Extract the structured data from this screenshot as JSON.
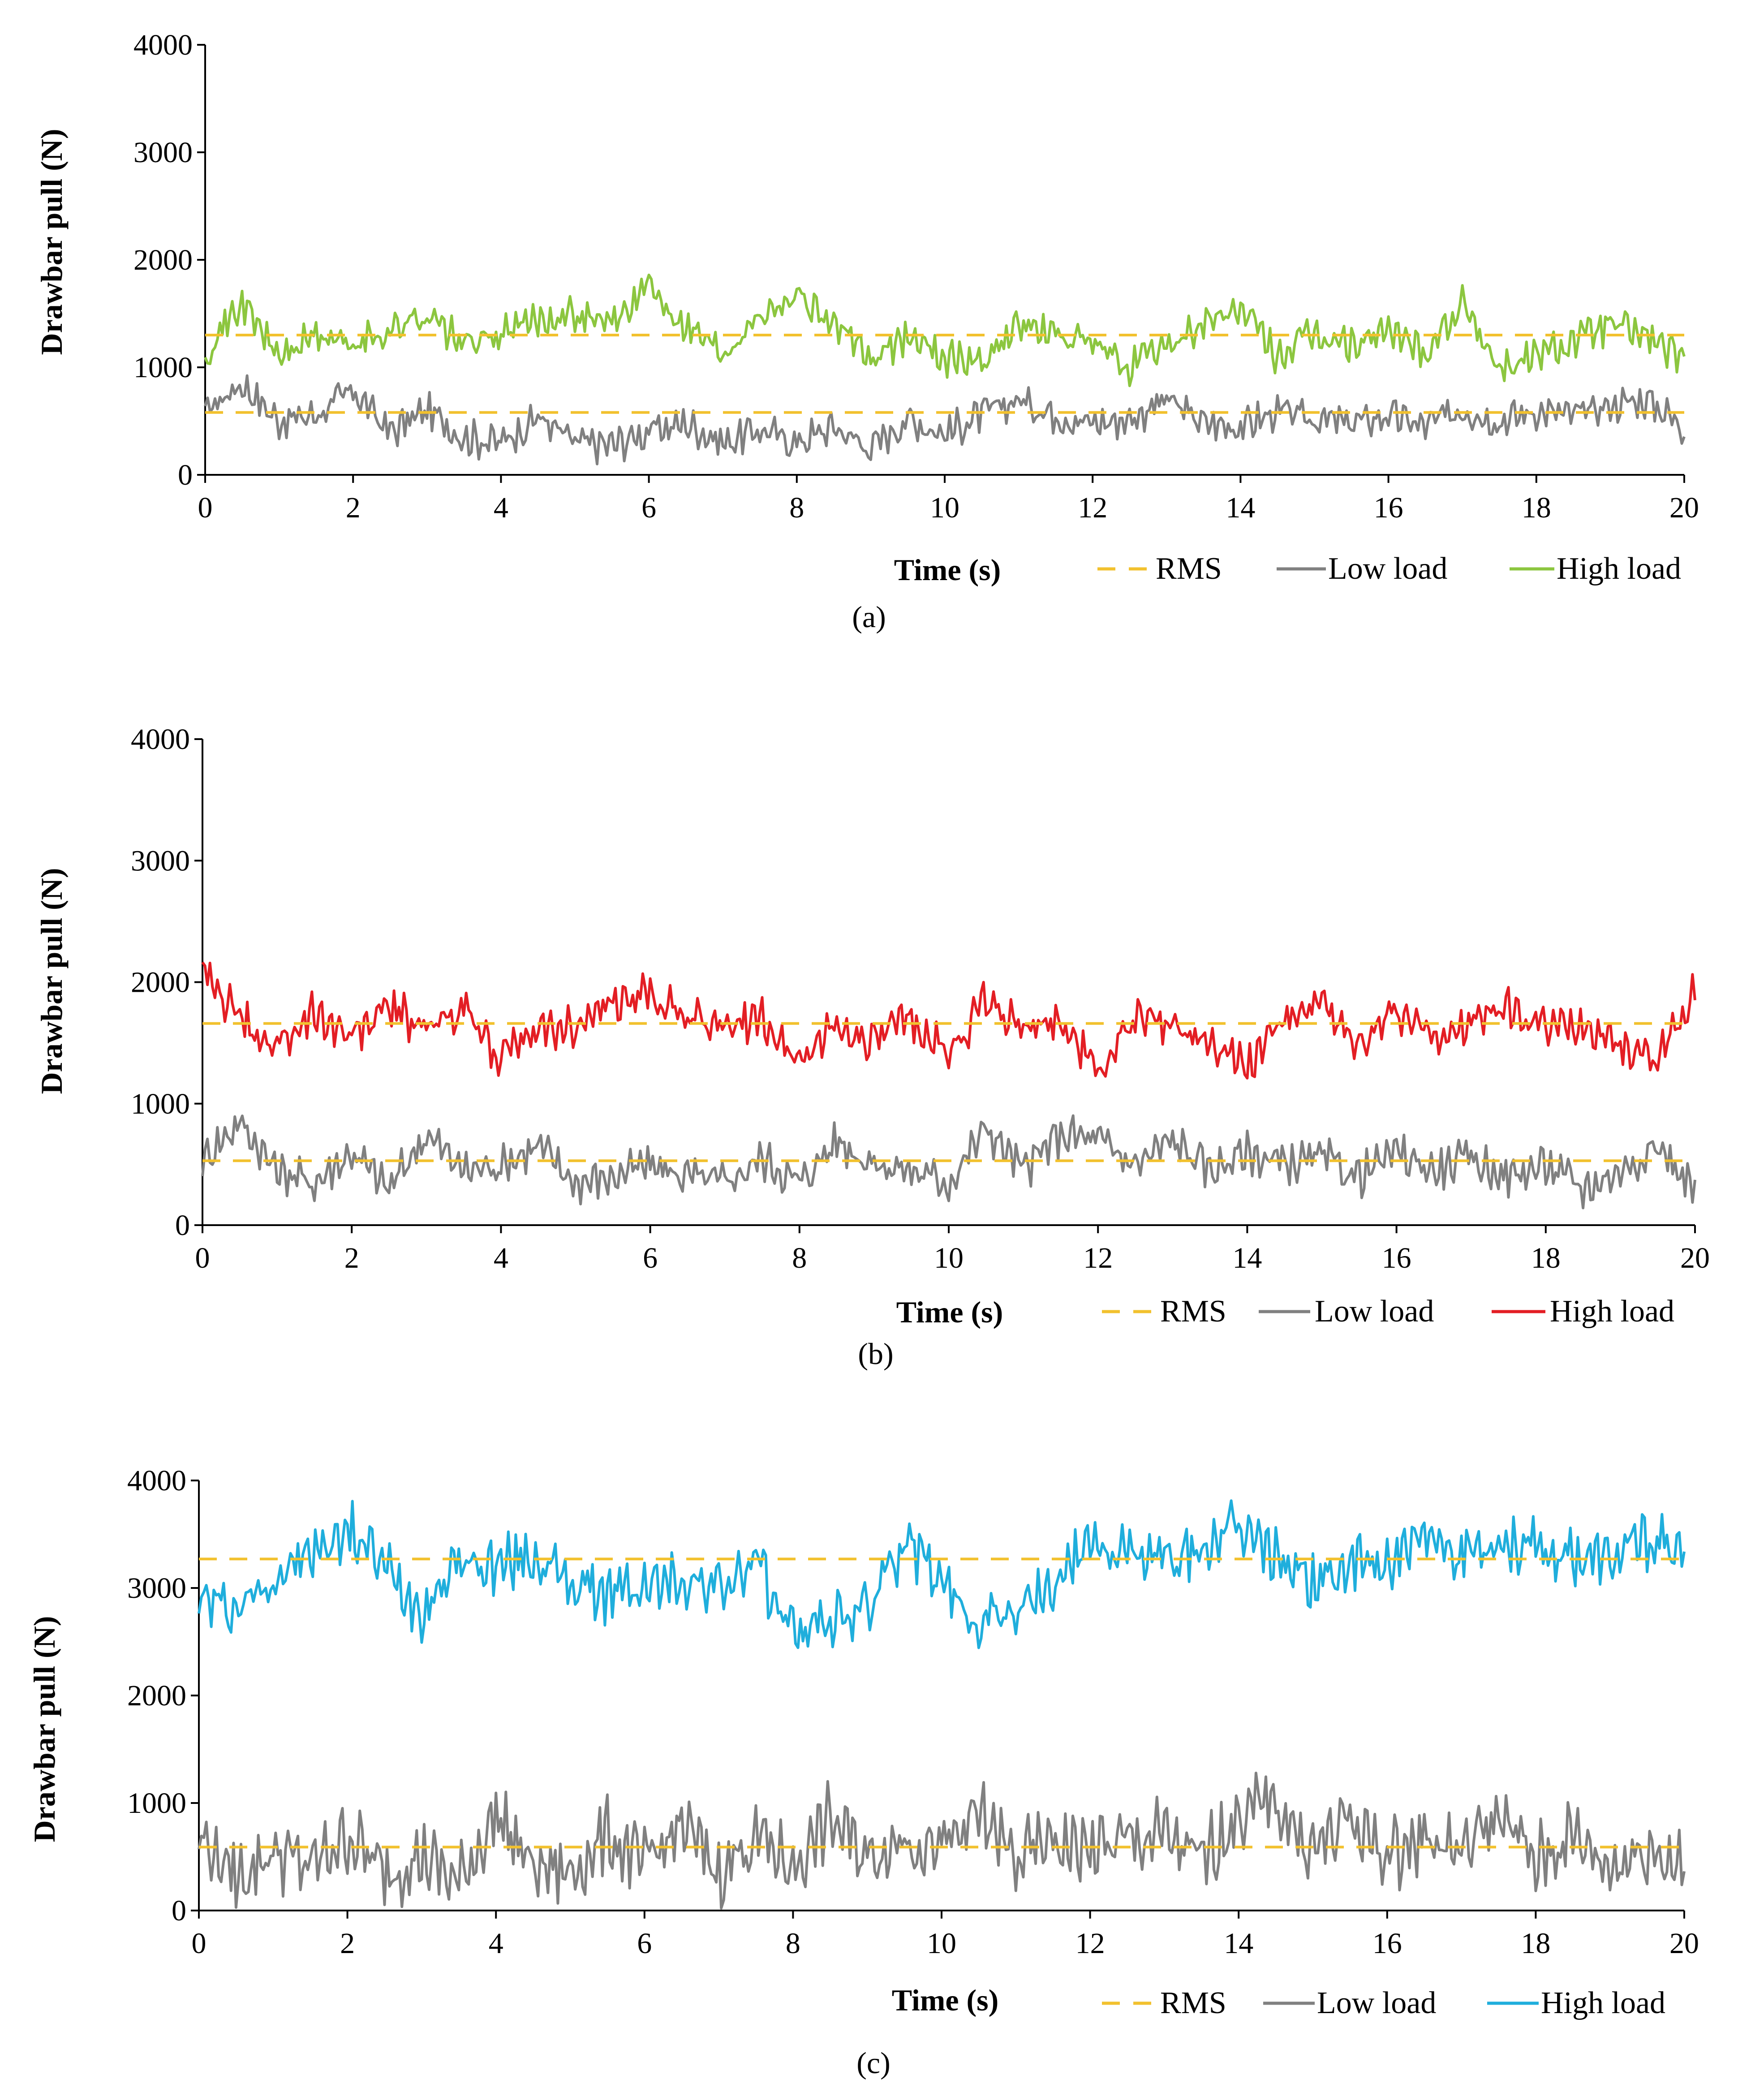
{
  "figure": {
    "x_label": "Time (s)",
    "y_label": "Drawbar pull (N)",
    "legend": {
      "rms": "RMS",
      "low": "Low load",
      "high": "High load"
    },
    "colors": {
      "rms": "#F2C12E",
      "low": "#808080",
      "high_a": "#8CC63F",
      "high_b": "#E31E24",
      "high_c": "#1FAEDC",
      "axis": "#000000"
    }
  },
  "chart_data": [
    {
      "type": "line",
      "caption": "(a)",
      "xlabel": "Time (s)",
      "ylabel": "Drawbar pull (N)",
      "xlim": [
        0,
        20
      ],
      "ylim": [
        0,
        4000
      ],
      "x_ticks": [
        "0",
        "2",
        "4",
        "6",
        "8",
        "10",
        "12",
        "14",
        "16",
        "18",
        "20"
      ],
      "y_ticks": [
        "0",
        "1000",
        "2000",
        "3000",
        "4000"
      ],
      "legend": [
        "RMS",
        "Low load",
        "High load"
      ],
      "high_color": "#8CC63F",
      "rms": {
        "low": 580,
        "high": 1300
      },
      "series": [
        {
          "name": "Low load",
          "x": [
            0,
            0.5,
            1,
            1.5,
            2,
            2.5,
            3,
            3.5,
            4,
            4.5,
            5,
            5.5,
            6,
            6.5,
            7,
            7.5,
            8,
            8.5,
            9,
            9.5,
            10,
            10.5,
            11,
            11.5,
            12,
            12.5,
            13,
            13.5,
            14,
            14.5,
            15,
            15.5,
            16,
            16.5,
            17,
            17.5,
            18,
            18.5,
            19,
            19.5,
            20
          ],
          "values": [
            600,
            850,
            500,
            560,
            780,
            400,
            600,
            350,
            300,
            540,
            300,
            280,
            400,
            480,
            300,
            420,
            300,
            450,
            250,
            520,
            380,
            560,
            700,
            560,
            480,
            520,
            700,
            480,
            450,
            580,
            520,
            480,
            550,
            450,
            620,
            500,
            600,
            550,
            650,
            700,
            450
          ]
        },
        {
          "name": "High load",
          "x": [
            0,
            0.5,
            1,
            1.5,
            2,
            2.5,
            3,
            3.5,
            4,
            4.5,
            5,
            5.5,
            6,
            6.5,
            7,
            7.5,
            8,
            8.5,
            9,
            9.5,
            10,
            10.5,
            11,
            11.5,
            12,
            12.5,
            13,
            13.5,
            14,
            14.5,
            15,
            15.5,
            16,
            16.5,
            17,
            17.5,
            18,
            18.5,
            19,
            19.5,
            20
          ],
          "values": [
            1150,
            1600,
            1100,
            1300,
            1200,
            1350,
            1500,
            1200,
            1300,
            1450,
            1500,
            1400,
            1750,
            1400,
            1150,
            1500,
            1700,
            1400,
            1050,
            1300,
            1100,
            1050,
            1400,
            1300,
            1200,
            1000,
            1200,
            1400,
            1550,
            1100,
            1300,
            1200,
            1350,
            1150,
            1600,
            1000,
            1100,
            1250,
            1400,
            1300,
            1050
          ]
        }
      ]
    },
    {
      "type": "line",
      "caption": "(b)",
      "xlabel": "Time (s)",
      "ylabel": "Drawbar pull (N)",
      "xlim": [
        0,
        20
      ],
      "ylim": [
        0,
        4000
      ],
      "x_ticks": [
        "0",
        "2",
        "4",
        "6",
        "8",
        "10",
        "12",
        "14",
        "16",
        "18",
        "20"
      ],
      "y_ticks": [
        "0",
        "1000",
        "2000",
        "3000",
        "4000"
      ],
      "legend": [
        "RMS",
        "Low load",
        "High load"
      ],
      "high_color": "#E31E24",
      "rms": {
        "low": 530,
        "high": 1660
      },
      "series": [
        {
          "name": "Low load",
          "x": [
            0,
            0.5,
            1,
            1.5,
            2,
            2.5,
            3,
            3.5,
            4,
            4.5,
            5,
            5.5,
            6,
            6.5,
            7,
            7.5,
            8,
            8.5,
            9,
            9.5,
            10,
            10.5,
            11,
            11.5,
            12,
            12.5,
            13,
            13.5,
            14,
            14.5,
            15,
            15.5,
            16,
            16.5,
            17,
            17.5,
            18,
            18.5,
            19,
            19.5,
            20
          ],
          "values": [
            550,
            850,
            450,
            350,
            600,
            300,
            750,
            450,
            500,
            650,
            350,
            400,
            500,
            400,
            350,
            550,
            350,
            700,
            500,
            450,
            350,
            800,
            450,
            750,
            700,
            500,
            700,
            450,
            600,
            500,
            550,
            400,
            600,
            450,
            550,
            400,
            500,
            300,
            450,
            650,
            300
          ]
        },
        {
          "name": "High load",
          "x": [
            0,
            0.5,
            1,
            1.5,
            2,
            2.5,
            3,
            3.5,
            4,
            4.5,
            5,
            5.5,
            6,
            6.5,
            7,
            7.5,
            8,
            8.5,
            9,
            9.5,
            10,
            10.5,
            11,
            11.5,
            12,
            12.5,
            13,
            13.5,
            14,
            14.5,
            15,
            15.5,
            16,
            16.5,
            17,
            17.5,
            18,
            18.5,
            19,
            19.5,
            20
          ],
          "values": [
            2100,
            1700,
            1450,
            1750,
            1550,
            1800,
            1600,
            1800,
            1350,
            1600,
            1650,
            1800,
            1900,
            1750,
            1600,
            1700,
            1350,
            1650,
            1500,
            1700,
            1400,
            1850,
            1600,
            1700,
            1250,
            1700,
            1650,
            1550,
            1300,
            1700,
            1800,
            1450,
            1750,
            1550,
            1650,
            1800,
            1600,
            1650,
            1500,
            1350,
            1950
          ]
        }
      ]
    },
    {
      "type": "line",
      "caption": "(c)",
      "xlabel": "Time (s)",
      "ylabel": "Drawbar pull (N)",
      "xlim": [
        0,
        20
      ],
      "ylim": [
        0,
        4000
      ],
      "x_ticks": [
        "0",
        "2",
        "4",
        "6",
        "8",
        "10",
        "12",
        "14",
        "16",
        "18",
        "20"
      ],
      "y_ticks": [
        "0",
        "1000",
        "2000",
        "3000",
        "4000"
      ],
      "legend": [
        "RMS",
        "Low load",
        "High load"
      ],
      "high_color": "#1FAEDC",
      "rms": {
        "low": 590,
        "high": 3270
      },
      "series": [
        {
          "name": "Low load",
          "x": [
            0,
            0.5,
            1,
            1.5,
            2,
            2.5,
            3,
            3.5,
            4,
            4.5,
            5,
            5.5,
            6,
            6.5,
            7,
            7.5,
            8,
            8.5,
            9,
            9.5,
            10,
            10.5,
            11,
            11.5,
            12,
            12.5,
            13,
            13.5,
            14,
            14.5,
            15,
            15.5,
            16,
            16.5,
            17,
            17.5,
            18,
            18.5,
            19,
            19.5,
            20
          ],
          "values": [
            700,
            300,
            550,
            400,
            700,
            350,
            500,
            250,
            900,
            400,
            350,
            700,
            400,
            800,
            350,
            700,
            400,
            850,
            500,
            700,
            550,
            900,
            450,
            650,
            550,
            650,
            700,
            450,
            900,
            1000,
            550,
            850,
            500,
            700,
            550,
            900,
            450,
            700,
            400,
            600,
            400
          ]
        },
        {
          "name": "High load",
          "x": [
            0,
            0.5,
            1,
            1.5,
            2,
            2.5,
            3,
            3.5,
            4,
            4.5,
            5,
            5.5,
            6,
            6.5,
            7,
            7.5,
            8,
            8.5,
            9,
            9.5,
            10,
            10.5,
            11,
            11.5,
            12,
            12.5,
            13,
            13.5,
            14,
            14.5,
            15,
            15.5,
            16,
            16.5,
            17,
            17.5,
            18,
            18.5,
            19,
            19.5,
            20
          ],
          "values": [
            2900,
            2800,
            3100,
            3300,
            3550,
            3200,
            2800,
            3250,
            3200,
            3300,
            3050,
            2950,
            3000,
            3100,
            3000,
            3200,
            2600,
            2700,
            2800,
            3450,
            3000,
            2700,
            2800,
            3000,
            3450,
            3300,
            3250,
            3350,
            3550,
            3300,
            3050,
            3200,
            3250,
            3400,
            3350,
            3450,
            3350,
            3300,
            3250,
            3450,
            3300
          ]
        }
      ]
    }
  ]
}
